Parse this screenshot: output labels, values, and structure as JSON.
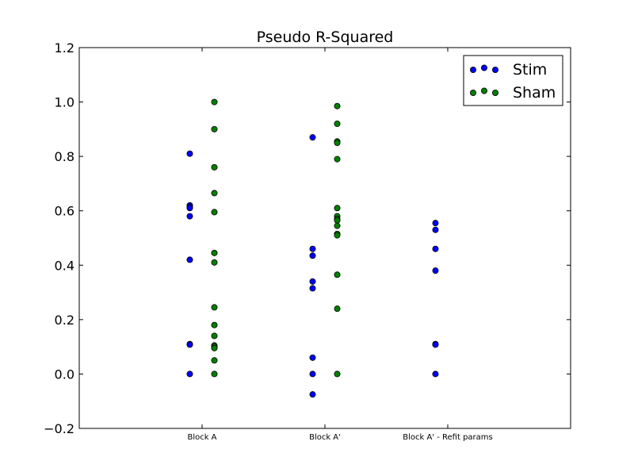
{
  "chart_data": {
    "type": "scatter",
    "title": "Pseudo R-Squared",
    "xlabel": "",
    "ylabel": "",
    "categories": [
      "Block A",
      "Block A'",
      "Block A' - Refit params"
    ],
    "ylim": [
      -0.2,
      1.2
    ],
    "yticks": [
      "−0.2",
      "0.0",
      "0.2",
      "0.4",
      "0.6",
      "0.8",
      "1.0",
      "1.2"
    ],
    "ytick_values": [
      -0.2,
      0.0,
      0.2,
      0.4,
      0.6,
      0.8,
      1.0,
      1.2
    ],
    "grid": false,
    "legend_position": "top-right",
    "series": [
      {
        "name": "Stim",
        "color": "#0000ff",
        "offset": -0.1,
        "points": [
          {
            "category": 0,
            "values": [
              0.81,
              0.62,
              0.615,
              0.61,
              0.58,
              0.42,
              0.11,
              0.108,
              0.0
            ]
          },
          {
            "category": 1,
            "values": [
              0.87,
              0.46,
              0.435,
              0.34,
              0.315,
              0.06,
              0.0,
              -0.075
            ]
          },
          {
            "category": 2,
            "values": [
              0.555,
              0.53,
              0.46,
              0.38,
              0.11,
              0.108,
              0.0
            ]
          }
        ]
      },
      {
        "name": "Sham",
        "color": "#008000",
        "offset": 0.1,
        "points": [
          {
            "category": 0,
            "values": [
              1.0,
              0.9,
              0.76,
              0.665,
              0.595,
              0.445,
              0.41,
              0.245,
              0.18,
              0.14,
              0.105,
              0.1,
              0.095,
              0.05,
              0.0
            ]
          },
          {
            "category": 1,
            "values": [
              0.985,
              0.92,
              0.855,
              0.85,
              0.79,
              0.61,
              0.58,
              0.57,
              0.565,
              0.545,
              0.515,
              0.51,
              0.365,
              0.24,
              0.0
            ]
          },
          {
            "category": 2,
            "values": []
          }
        ]
      }
    ]
  }
}
